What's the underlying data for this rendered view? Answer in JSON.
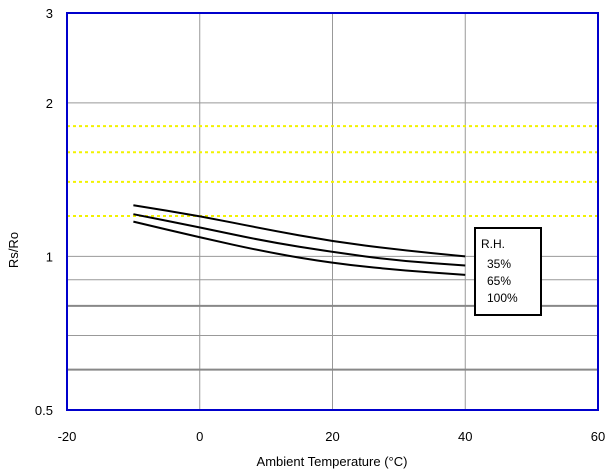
{
  "chart_data": {
    "type": "line",
    "xlabel": "Ambient Temperature (°C)",
    "ylabel": "Rs/Ro",
    "xlim": [
      -20,
      60
    ],
    "ylim": [
      0.5,
      3
    ],
    "yscale": "log",
    "x_ticks": [
      "-20",
      "0",
      "20",
      "40",
      "60"
    ],
    "y_ticks": [
      {
        "value": 3,
        "label": "3"
      },
      {
        "value": 2,
        "label": "2"
      },
      {
        "value": 1,
        "label": "1"
      },
      {
        "value": 0.5,
        "label": "0.5"
      }
    ],
    "grid": true,
    "y_gridlines": [
      2,
      1,
      0.9,
      0.8,
      0.7,
      0.6
    ],
    "y_gridlines_emphasized": [
      0.8,
      0.6
    ],
    "reference_lines_dashed": [
      1.8,
      1.6,
      1.4,
      1.2
    ],
    "legend": {
      "title": "R.H.",
      "placement": "right",
      "labels": [
        "35%",
        "65%",
        "100%"
      ]
    },
    "series": [
      {
        "name": "35%",
        "x": [
          -10,
          0,
          10,
          20,
          30,
          40
        ],
        "y": [
          1.26,
          1.2,
          1.13,
          1.07,
          1.03,
          1.0
        ]
      },
      {
        "name": "65%",
        "x": [
          -10,
          0,
          10,
          20,
          30,
          40
        ],
        "y": [
          1.21,
          1.14,
          1.07,
          1.02,
          0.98,
          0.96
        ]
      },
      {
        "name": "100%",
        "x": [
          -10,
          0,
          10,
          20,
          30,
          40
        ],
        "y": [
          1.17,
          1.09,
          1.02,
          0.97,
          0.94,
          0.92
        ]
      }
    ],
    "colors": {
      "frame": "#0000cc",
      "grid": "#999999",
      "grid_emphasized": "#888888",
      "dashed": "#f2f200",
      "series": "#000000"
    }
  }
}
